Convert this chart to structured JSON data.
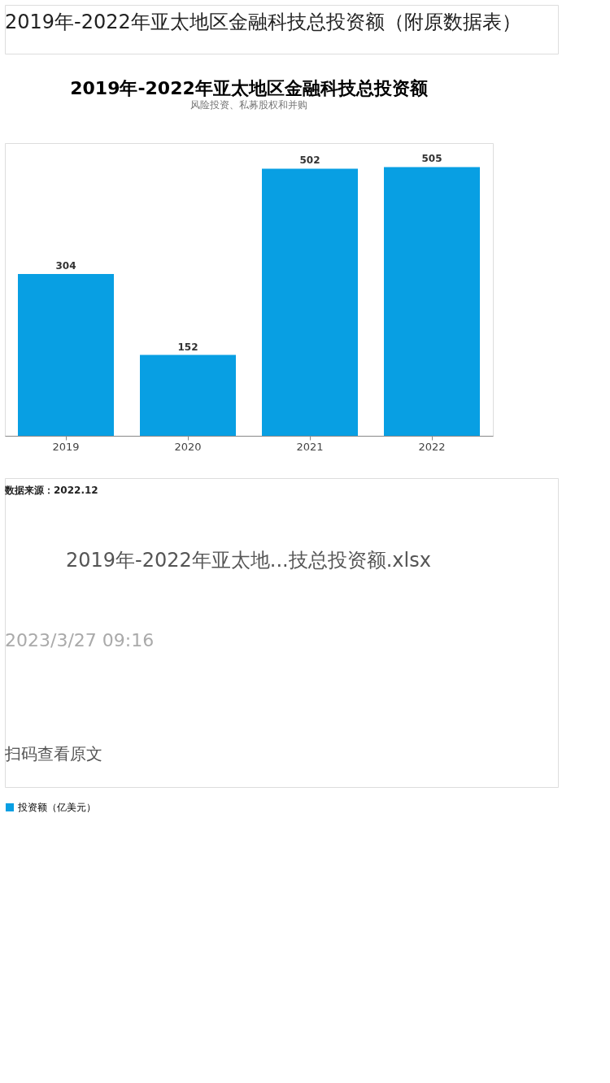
{
  "chart_data": {
    "type": "bar",
    "title": "2019年-2022年亚太地区金融科技总投资额",
    "subtitle": "风险投资、私募股权和并购",
    "categories": [
      "2019",
      "2020",
      "2021",
      "2022"
    ],
    "series": [
      {
        "name": "投资额（亿美元）",
        "color": "#089fe3",
        "values": [
          304,
          152,
          502,
          505
        ]
      }
    ],
    "data_labels": true,
    "legend": "bottom",
    "tick_labels": "x",
    "grid": false,
    "annotations": [
      "2019年-2022年亚太地区金融科技总投资额（附原数据表）",
      "数据来源：2022.12",
      "2019年-2022年亚太地...技总投资额.xlsx",
      "2023/3/27 09:16",
      "扫码查看原文"
    ]
  }
}
